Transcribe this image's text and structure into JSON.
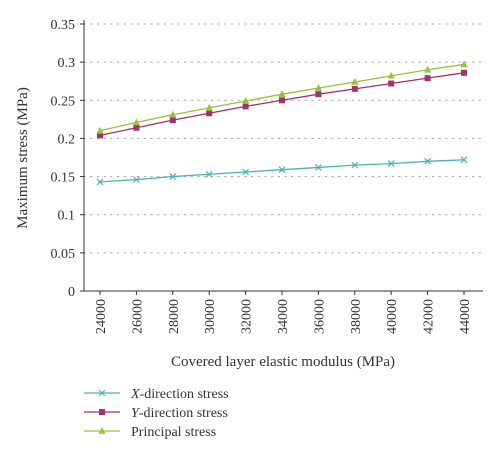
{
  "chart_data": {
    "type": "line",
    "title": "",
    "xlabel": "Covered layer elastic modulus (MPa)",
    "ylabel": "Maximum stress (MPa)",
    "x": [
      24000,
      26000,
      28000,
      30000,
      32000,
      34000,
      36000,
      38000,
      40000,
      42000,
      44000
    ],
    "x_tick_labels": [
      "24000",
      "26000",
      "28000",
      "30000",
      "32000",
      "34000",
      "36000",
      "38000",
      "40000",
      "42000",
      "44000"
    ],
    "ylim": [
      0,
      0.35
    ],
    "y_ticks": [
      0,
      0.05,
      0.1,
      0.15,
      0.2,
      0.25,
      0.3,
      0.35
    ],
    "y_tick_labels": [
      "0",
      "0.05",
      "0.1",
      "0.15",
      "0.2",
      "0.25",
      "0.3",
      "0.35"
    ],
    "grid": "horizontal dotted",
    "legend_position": "bottom-left",
    "series": [
      {
        "name": "X-direction stress",
        "name_italic": "X",
        "name_rest": "-direction stress",
        "marker": "x",
        "color": "#4bb3b3",
        "values": [
          0.143,
          0.146,
          0.15,
          0.153,
          0.156,
          0.159,
          0.162,
          0.165,
          0.167,
          0.17,
          0.172
        ]
      },
      {
        "name": "Y-direction stress",
        "name_italic": "Y",
        "name_rest": "-direction stress",
        "marker": "square",
        "color": "#a3306f",
        "values": [
          0.204,
          0.214,
          0.224,
          0.233,
          0.242,
          0.25,
          0.258,
          0.265,
          0.272,
          0.279,
          0.286
        ]
      },
      {
        "name": "Principal stress",
        "name_italic": "",
        "name_rest": "Principal stress",
        "marker": "triangle",
        "color": "#99c23d",
        "values": [
          0.21,
          0.221,
          0.231,
          0.24,
          0.249,
          0.258,
          0.266,
          0.274,
          0.282,
          0.29,
          0.297
        ]
      }
    ]
  }
}
